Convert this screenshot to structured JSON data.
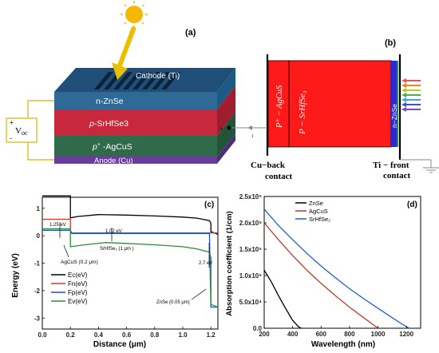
{
  "panel_a": {
    "label": "(a)",
    "cathode": "Cathode (Ti)",
    "layer1": "n-ZnSe",
    "layer2_italic": "p",
    "layer2_rest": "-SrHfSe3",
    "layer3_italic": "p",
    "layer3_sup": "+",
    "layer3_rest": " -AgCuS",
    "anode": "Anode (Cu)",
    "voc_main": "V",
    "voc_sub": "oc",
    "plus": "+",
    "minus": "-",
    "colors": {
      "top": "#1f4e79",
      "znse": "#2e6a95",
      "srhfse3": "#c8283c",
      "agcus": "#2f6b4a",
      "anode": "#6a3d9a",
      "sun": "#f5b700",
      "arrow": "#e8c000"
    }
  },
  "panel_b": {
    "label": "(b)",
    "layer_agcus": "P⁺ − AgCuS",
    "layer_srhfse3": "P − SrHfSe₃",
    "layer_znse": "n−ZnSe",
    "back_contact_line1": "Cu−back",
    "back_contact_line2": "contact",
    "front_contact_line1": "Ti − front",
    "front_contact_line2": "contact",
    "v_label": "v",
    "i_label": "i"
  },
  "panel_c": {
    "label": "(c)",
    "ann_125": "1.25 eV",
    "ann_102": "1.02 eV",
    "ann_srhfse3": "SrHfSe₃ (1 μm )",
    "ann_agcus": "AgCuS (0.2 μm)",
    "ann_27": "2.7 eV",
    "ann_znse": "ZnSe (0.05 μm)",
    "chart_data": {
      "type": "line",
      "xlabel": "Distance (μm)",
      "ylabel": "Energy (eV)",
      "xlim": [
        0,
        1.25
      ],
      "ylim": [
        -3.4,
        1.4
      ],
      "xticks": [
        "0.0",
        "0.2",
        "0.4",
        "0.6",
        "0.8",
        "1.0",
        "1.2"
      ],
      "yticks": [
        "1",
        "0",
        "-1",
        "-2",
        "-3"
      ],
      "series": [
        {
          "name": "Ec(eV)",
          "color": "#000000",
          "x": [
            0,
            0.2,
            0.2,
            0.25,
            0.4,
            0.6,
            0.8,
            1.0,
            1.1,
            1.19,
            1.2,
            1.2,
            1.25
          ],
          "y": [
            1.45,
            1.45,
            0.65,
            0.7,
            0.77,
            0.75,
            0.72,
            0.68,
            0.64,
            0.55,
            0.45,
            0.15,
            0.05
          ]
        },
        {
          "name": "Fn(eV)",
          "color": "#d13a2a",
          "x": [
            0,
            0.2,
            0.2,
            0.4,
            0.8,
            1.0,
            1.2,
            1.25
          ],
          "y": [
            0.6,
            0.6,
            0.1,
            0.1,
            0.1,
            0.1,
            0.1,
            0.1
          ]
        },
        {
          "name": "Fp(eV)",
          "color": "#1f4fd1",
          "x": [
            0,
            0.2,
            0.21,
            0.4,
            0.8,
            1.0,
            1.19,
            1.2,
            1.25
          ],
          "y": [
            0.2,
            0.2,
            0.08,
            0.08,
            0.08,
            0.08,
            0.08,
            -2.6,
            -2.6
          ]
        },
        {
          "name": "Ev(eV)",
          "color": "#2e8b3c",
          "x": [
            0,
            0.2,
            0.2,
            0.3,
            0.45,
            0.6,
            0.8,
            1.0,
            1.1,
            1.19,
            1.2,
            1.2,
            1.25
          ],
          "y": [
            0.25,
            0.25,
            -0.4,
            -0.33,
            -0.25,
            -0.28,
            -0.33,
            -0.4,
            -0.48,
            -0.6,
            -0.8,
            -2.5,
            -2.6
          ]
        }
      ]
    }
  },
  "panel_d": {
    "label": "(d)",
    "chart_data": {
      "type": "line",
      "xlabel": "Wavelength (nm)",
      "ylabel": "Absorption coefficient (1/cm)",
      "xlim": [
        200,
        1300
      ],
      "ylim": [
        0,
        250000
      ],
      "xticks": [
        "200",
        "400",
        "600",
        "800",
        "1000",
        "1200"
      ],
      "yticks": [
        "0.0",
        "5.0x10⁴",
        "1.0x10⁵",
        "1.5x10⁵",
        "2.0x10⁵",
        "2.5x10⁵"
      ],
      "series": [
        {
          "name": "ZnSe",
          "color": "#000000",
          "x": [
            200,
            250,
            300,
            350,
            400,
            440,
            460
          ],
          "y": [
            110000,
            88000,
            62000,
            38000,
            15000,
            3000,
            0
          ]
        },
        {
          "name": "AgCuS",
          "color": "#c0392b",
          "x": [
            200,
            300,
            400,
            500,
            600,
            700,
            800,
            900,
            970,
            1000
          ],
          "y": [
            200000,
            168000,
            138000,
            110000,
            85000,
            62000,
            40000,
            20000,
            6000,
            0
          ]
        },
        {
          "name": "SrHfSe₂",
          "color": "#1f5fd1",
          "x": [
            200,
            300,
            400,
            500,
            600,
            700,
            800,
            900,
            1000,
            1100,
            1180,
            1220
          ],
          "y": [
            226000,
            195000,
            168000,
            142000,
            118000,
            96000,
            75000,
            56000,
            38000,
            20000,
            6000,
            0
          ]
        }
      ]
    }
  }
}
